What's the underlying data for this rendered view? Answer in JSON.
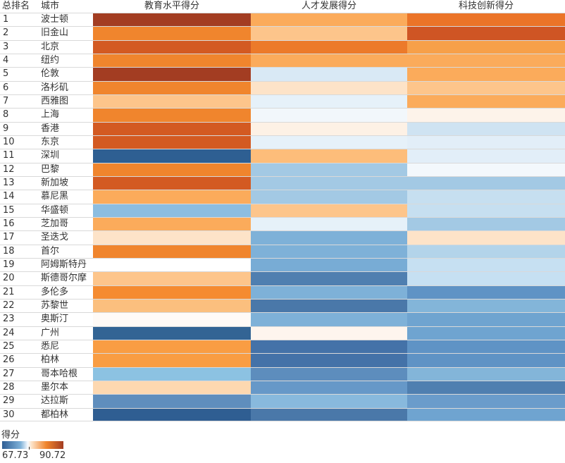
{
  "chart_data": {
    "type": "heatmap",
    "headers": {
      "rank": "总排名",
      "city": "城市"
    },
    "columns": [
      "教育水平得分",
      "人才发展得分",
      "科技创新得分"
    ],
    "rows": [
      {
        "rank": "1",
        "city": "波士顿",
        "colors": [
          "#a33d22",
          "#fbab5b",
          "#eb7428"
        ]
      },
      {
        "rank": "2",
        "city": "旧金山",
        "colors": [
          "#f0852d",
          "#fdc58b",
          "#cf5524"
        ]
      },
      {
        "rank": "3",
        "city": "北京",
        "colors": [
          "#d35a22",
          "#ec7a2a",
          "#f7a049"
        ]
      },
      {
        "rank": "4",
        "city": "纽约",
        "colors": [
          "#f0852d",
          "#fbab5b",
          "#fbab5b"
        ]
      },
      {
        "rank": "5",
        "city": "伦敦",
        "colors": [
          "#a33d22",
          "#d9e9f5",
          "#fbab5b"
        ]
      },
      {
        "rank": "6",
        "city": "洛杉矶",
        "colors": [
          "#f0852d",
          "#fde3c8",
          "#fdc58b"
        ]
      },
      {
        "rank": "7",
        "city": "西雅图",
        "colors": [
          "#fdc58b",
          "#e6f1f9",
          "#fbab5b"
        ]
      },
      {
        "rank": "8",
        "city": "上海",
        "colors": [
          "#f0852d",
          "#f2f7fb",
          "#fdf3ea"
        ]
      },
      {
        "rank": "9",
        "city": "香港",
        "colors": [
          "#d35a22",
          "#fdf1e5",
          "#cfe3f2"
        ]
      },
      {
        "rank": "10",
        "city": "东京",
        "colors": [
          "#d35a22",
          "#e6f1f9",
          "#e2eef8"
        ]
      },
      {
        "rank": "11",
        "city": "深圳",
        "colors": [
          "#2e5f92",
          "#fdbd7a",
          "#e2eef8"
        ]
      },
      {
        "rank": "12",
        "city": "巴黎",
        "colors": [
          "#f0852d",
          "#a3c9e4",
          "#f3f8fc"
        ]
      },
      {
        "rank": "13",
        "city": "新加坡",
        "colors": [
          "#d35a22",
          "#a3c9e4",
          "#a3c9e4"
        ]
      },
      {
        "rank": "14",
        "city": "慕尼黑",
        "colors": [
          "#fbab5b",
          "#a3c9e4",
          "#c6dff0"
        ]
      },
      {
        "rank": "15",
        "city": "华盛顿",
        "colors": [
          "#8cbde0",
          "#fdc58b",
          "#c6dff0"
        ]
      },
      {
        "rank": "16",
        "city": "芝加哥",
        "colors": [
          "#fbab5b",
          "#e6f1f9",
          "#a3c9e4"
        ]
      },
      {
        "rank": "17",
        "city": "圣迭戈",
        "colors": [
          "#fde3c8",
          "#7eb1d8",
          "#fde3c8"
        ]
      },
      {
        "rank": "18",
        "city": "首尔",
        "colors": [
          "#f0852d",
          "#7eb1d8",
          "#b3d4ea"
        ]
      },
      {
        "rank": "19",
        "city": "阿姆斯特丹",
        "colors": [
          "#ffffff",
          "#78acd5",
          "#c6e0f2"
        ]
      },
      {
        "rank": "20",
        "city": "斯德哥尔摩",
        "colors": [
          "#fdc58b",
          "#4f7fb0",
          "#c6e0f2"
        ]
      },
      {
        "rank": "21",
        "city": "多伦多",
        "colors": [
          "#f58b30",
          "#7eb1d8",
          "#5f93c5"
        ]
      },
      {
        "rank": "22",
        "city": "苏黎世",
        "colors": [
          "#fbbf7e",
          "#4a78a9",
          "#83b5d9"
        ]
      },
      {
        "rank": "23",
        "city": "奥斯汀",
        "colors": [
          "#fffaf6",
          "#7eb1d8",
          "#6fa4d0"
        ]
      },
      {
        "rank": "24",
        "city": "广州",
        "colors": [
          "#336494",
          "#fef5ee",
          "#6fa4d0"
        ]
      },
      {
        "rank": "25",
        "city": "悉尼",
        "colors": [
          "#f99d43",
          "#4472a8",
          "#5f93c5"
        ]
      },
      {
        "rank": "26",
        "city": "柏林",
        "colors": [
          "#f99d43",
          "#4472a8",
          "#5f93c5"
        ]
      },
      {
        "rank": "27",
        "city": "哥本哈根",
        "colors": [
          "#8cc2e2",
          "#5d8dbd",
          "#83b5d9"
        ]
      },
      {
        "rank": "28",
        "city": "墨尔本",
        "colors": [
          "#fdd8b0",
          "#6698c8",
          "#4f7fb0"
        ]
      },
      {
        "rank": "29",
        "city": "达拉斯",
        "colors": [
          "#5f8ebd",
          "#88b9dd",
          "#6a9ccb"
        ]
      },
      {
        "rank": "30",
        "city": "都柏林",
        "colors": [
          "#2f5e92",
          "#4a78a9",
          "#6fa4d0"
        ]
      }
    ],
    "legend": {
      "title": "得分",
      "min": "67.73",
      "max": "90.72",
      "placement": "bottom-left"
    }
  }
}
